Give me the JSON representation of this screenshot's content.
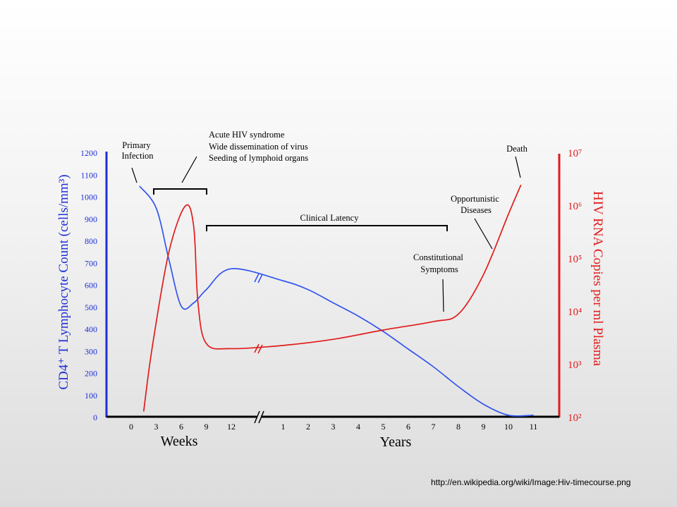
{
  "chart_data": {
    "type": "line",
    "axes": {
      "left": {
        "label": "CD4⁺ T Lymphocyte Count (cells/mm³)",
        "range": [
          0,
          1200
        ],
        "ticks": [
          0,
          100,
          200,
          300,
          400,
          500,
          600,
          700,
          800,
          900,
          1000,
          1100,
          1200
        ],
        "color": "#1f2fd6"
      },
      "right": {
        "label": "HIV RNA Copies per ml Plasma",
        "scale": "log",
        "range": [
          100,
          10000000
        ],
        "tick_labels": [
          "10²",
          "10³",
          "10⁴",
          "10⁵",
          "10⁶",
          "10⁷"
        ],
        "color": "#e21b1b"
      },
      "x": {
        "segments": [
          {
            "title": "Weeks",
            "ticks": [
              "0",
              "3",
              "6",
              "9",
              "12"
            ]
          },
          {
            "title": "Years",
            "ticks": [
              "1",
              "2",
              "3",
              "4",
              "5",
              "6",
              "7",
              "8",
              "9",
              "10",
              "11"
            ]
          }
        ]
      }
    },
    "series": [
      {
        "color": "#3355ee",
        "axis": "left",
        "points": [
          {
            "x": "wk 1",
            "y": 1050
          },
          {
            "x": "wk 3",
            "y": 950
          },
          {
            "x": "wk 4.5",
            "y": 720
          },
          {
            "x": "wk 6",
            "y": 505
          },
          {
            "x": "wk 7.5",
            "y": 520
          },
          {
            "x": "wk 9",
            "y": 580
          },
          {
            "x": "wk 12",
            "y": 675
          },
          {
            "x": "yr 1",
            "y": 620
          },
          {
            "x": "yr 2",
            "y": 580
          },
          {
            "x": "yr 3",
            "y": 520
          },
          {
            "x": "yr 4",
            "y": 460
          },
          {
            "x": "yr 5",
            "y": 390
          },
          {
            "x": "yr 6",
            "y": 310
          },
          {
            "x": "yr 7",
            "y": 230
          },
          {
            "x": "yr 8",
            "y": 140
          },
          {
            "x": "yr 9",
            "y": 60
          },
          {
            "x": "yr 10",
            "y": 10
          },
          {
            "x": "yr 11",
            "y": 10
          }
        ]
      },
      {
        "color": "#e21b1b",
        "axis": "right",
        "points": [
          {
            "x": "wk 1.5",
            "y": 130
          },
          {
            "x": "wk 2.5",
            "y": 2000
          },
          {
            "x": "wk 4.5",
            "y": 130000
          },
          {
            "x": "wk 6.5",
            "y": 1000000
          },
          {
            "x": "wk 7.5",
            "y": 400000
          },
          {
            "x": "wk 8",
            "y": 15000
          },
          {
            "x": "wk 9",
            "y": 2500
          },
          {
            "x": "wk 12",
            "y": 2000
          },
          {
            "x": "yr 1",
            "y": 2300
          },
          {
            "x": "yr 3",
            "y": 3000
          },
          {
            "x": "yr 5",
            "y": 4500
          },
          {
            "x": "yr 7",
            "y": 6500
          },
          {
            "x": "yr 8",
            "y": 9000
          },
          {
            "x": "yr 9",
            "y": 50000
          },
          {
            "x": "yr 10",
            "y": 700000
          },
          {
            "x": "yr 10.5",
            "y": 2500000
          }
        ]
      }
    ],
    "annotations": [
      {
        "text": [
          "Primary",
          "Infection"
        ]
      },
      {
        "text": [
          "Acute HIV syndrome",
          "Wide dissemination of virus",
          "Seeding of lymphoid organs"
        ]
      },
      {
        "text": [
          "Clinical Latency"
        ]
      },
      {
        "text": [
          "Constitutional",
          "Symptoms"
        ]
      },
      {
        "text": [
          "Opportunistic",
          "Diseases"
        ]
      },
      {
        "text": [
          "Death"
        ]
      }
    ],
    "grid": false
  },
  "source_url": "http://en.wikipedia.org/wiki/Image:Hiv-timecourse.png"
}
